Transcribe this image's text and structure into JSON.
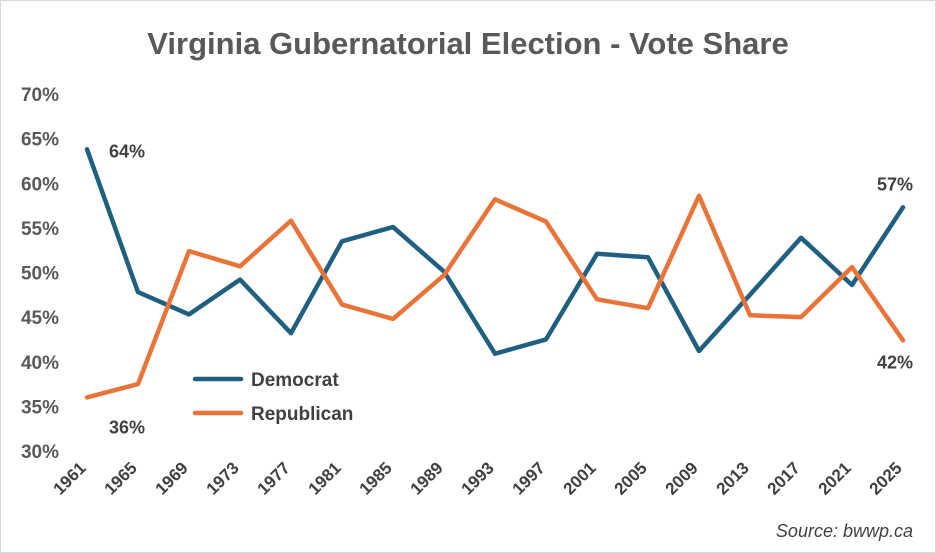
{
  "chart_data": {
    "type": "line",
    "title": "Virginia Gubernatorial Election - Vote Share",
    "xlabel": "",
    "ylabel": "",
    "ylim": [
      0.3,
      0.7
    ],
    "yticks": [
      "30%",
      "35%",
      "40%",
      "45%",
      "50%",
      "55%",
      "60%",
      "65%",
      "70%"
    ],
    "categories": [
      "1961",
      "1965",
      "1969",
      "1973",
      "1977",
      "1981",
      "1985",
      "1989",
      "1993",
      "1997",
      "2001",
      "2005",
      "2009",
      "2013",
      "2017",
      "2021",
      "2025"
    ],
    "series": [
      {
        "name": "Democrat",
        "color": "#1f5f7f",
        "values": [
          0.638,
          0.478,
          0.453,
          0.492,
          0.432,
          0.535,
          0.551,
          0.501,
          0.409,
          0.425,
          0.521,
          0.517,
          0.412,
          0.475,
          0.539,
          0.486,
          0.573
        ]
      },
      {
        "name": "Republican",
        "color": "#e9743a",
        "values": [
          0.36,
          0.375,
          0.524,
          0.507,
          0.558,
          0.464,
          0.448,
          0.497,
          0.582,
          0.557,
          0.47,
          0.46,
          0.586,
          0.452,
          0.45,
          0.506,
          0.424
        ]
      }
    ],
    "data_labels": [
      {
        "series": "Democrat",
        "category": "1961",
        "text": "64%"
      },
      {
        "series": "Republican",
        "category": "1961",
        "text": "36%"
      },
      {
        "series": "Democrat",
        "category": "2025",
        "text": "57%"
      },
      {
        "series": "Republican",
        "category": "2025",
        "text": "42%"
      }
    ],
    "legend_position": "lower-left inside plot",
    "grid": false,
    "source": "Source: bwwp.ca"
  }
}
